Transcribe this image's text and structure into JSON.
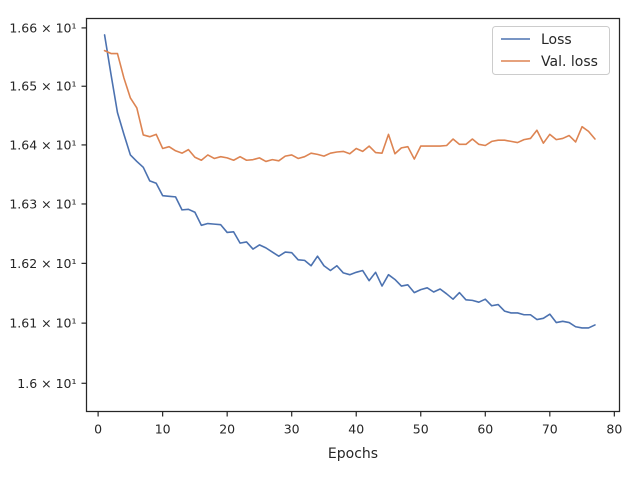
{
  "chart_data": {
    "type": "line",
    "title": "",
    "xlabel": "Epochs",
    "ylabel": "",
    "xlim": [
      -1.8,
      80.8
    ],
    "ylim": [
      15.9533,
      16.6162
    ],
    "y_scale": "log",
    "grid": false,
    "legend_position": "top-right",
    "x_ticks": [
      0,
      10,
      20,
      30,
      40,
      50,
      60,
      70,
      80
    ],
    "x_tick_labels": [
      "0",
      "10",
      "20",
      "30",
      "40",
      "50",
      "60",
      "70",
      "80"
    ],
    "y_ticks": [
      16.0,
      16.1,
      16.2,
      16.3,
      16.4,
      16.5,
      16.6
    ],
    "y_tick_labels": [
      "1.6 × 10¹",
      "1.61 × 10¹",
      "1.62 × 10¹",
      "1.63 × 10¹",
      "1.64 × 10¹",
      "1.65 × 10¹",
      "1.66 × 10¹"
    ],
    "x": [
      1,
      2,
      3,
      4,
      5,
      6,
      7,
      8,
      9,
      10,
      11,
      12,
      13,
      14,
      15,
      16,
      17,
      18,
      19,
      20,
      21,
      22,
      23,
      24,
      25,
      26,
      27,
      28,
      29,
      30,
      31,
      32,
      33,
      34,
      35,
      36,
      37,
      38,
      39,
      40,
      41,
      42,
      43,
      44,
      45,
      46,
      47,
      48,
      49,
      50,
      51,
      52,
      53,
      54,
      55,
      56,
      57,
      58,
      59,
      60,
      61,
      62,
      63,
      64,
      65,
      66,
      67,
      68,
      69,
      70,
      71,
      72,
      73,
      74,
      75,
      76,
      77
    ],
    "series": [
      {
        "name": "Loss",
        "color": "#4c72b0",
        "values": [
          16.588,
          16.52,
          16.455,
          16.418,
          16.383,
          16.372,
          16.362,
          16.339,
          16.335,
          16.314,
          16.313,
          16.312,
          16.29,
          16.291,
          16.286,
          16.264,
          16.267,
          16.266,
          16.265,
          16.252,
          16.253,
          16.234,
          16.236,
          16.224,
          16.231,
          16.226,
          16.219,
          16.212,
          16.219,
          16.218,
          16.206,
          16.205,
          16.196,
          16.212,
          16.196,
          16.188,
          16.196,
          16.184,
          16.181,
          16.185,
          16.188,
          16.171,
          16.185,
          16.162,
          16.181,
          16.173,
          16.162,
          16.164,
          16.151,
          16.156,
          16.159,
          16.152,
          16.157,
          16.149,
          16.14,
          16.151,
          16.139,
          16.138,
          16.135,
          16.14,
          16.129,
          16.131,
          16.12,
          16.117,
          16.117,
          16.114,
          16.114,
          16.106,
          16.108,
          16.115,
          16.101,
          16.103,
          16.101,
          16.094,
          16.092,
          16.092,
          16.097
        ]
      },
      {
        "name": "Val. loss",
        "color": "#dd8452",
        "values": [
          16.561,
          16.556,
          16.556,
          16.514,
          16.48,
          16.463,
          16.417,
          16.414,
          16.418,
          16.394,
          16.397,
          16.39,
          16.386,
          16.392,
          16.379,
          16.374,
          16.383,
          16.377,
          16.38,
          16.378,
          16.374,
          16.38,
          16.374,
          16.375,
          16.378,
          16.372,
          16.375,
          16.373,
          16.381,
          16.383,
          16.377,
          16.38,
          16.386,
          16.384,
          16.381,
          16.386,
          16.388,
          16.389,
          16.385,
          16.394,
          16.389,
          16.398,
          16.387,
          16.386,
          16.418,
          16.385,
          16.395,
          16.397,
          16.376,
          16.398,
          16.398,
          16.398,
          16.398,
          16.399,
          16.41,
          16.401,
          16.401,
          16.41,
          16.401,
          16.399,
          16.406,
          16.408,
          16.408,
          16.406,
          16.404,
          16.409,
          16.411,
          16.425,
          16.403,
          16.418,
          16.409,
          16.411,
          16.416,
          16.405,
          16.431,
          16.423,
          16.41
        ]
      }
    ]
  }
}
